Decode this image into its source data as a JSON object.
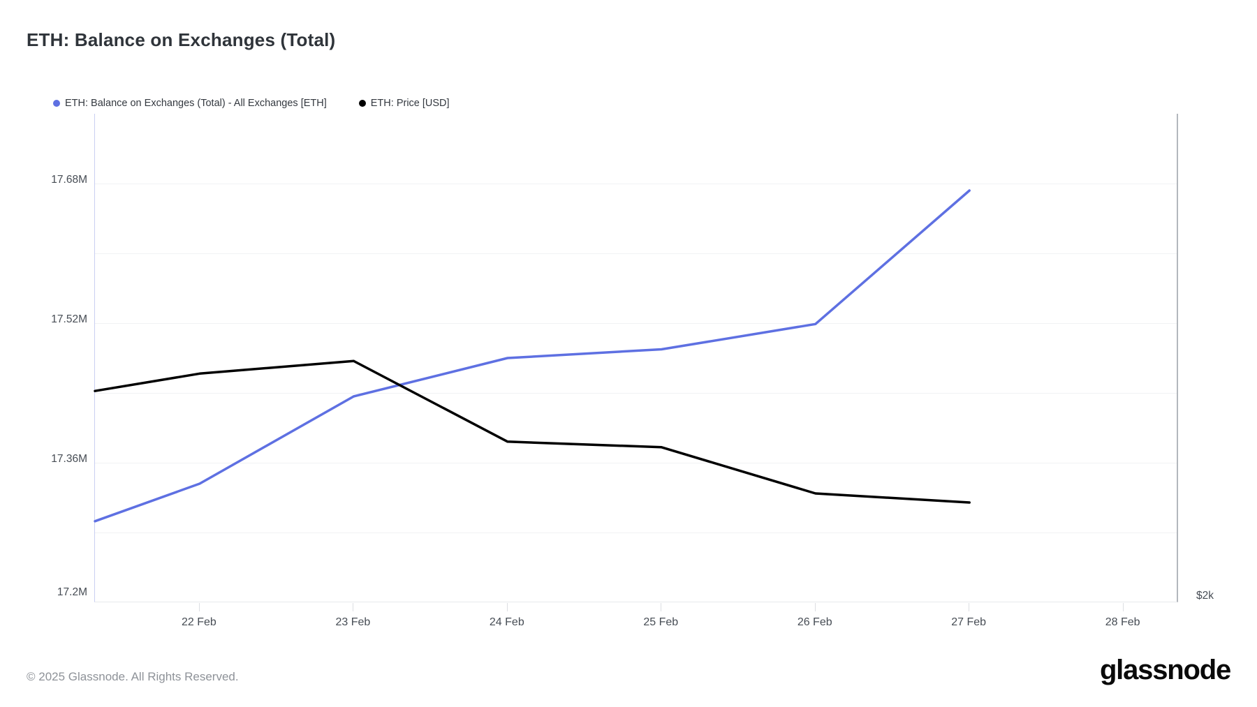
{
  "title": "ETH: Balance on Exchanges (Total)",
  "legend": {
    "items": [
      {
        "label": "ETH: Balance on Exchanges (Total) - All Exchanges [ETH]",
        "color": "#5e70e2"
      },
      {
        "label": "ETH: Price [USD]",
        "color": "#000000"
      }
    ]
  },
  "footer": {
    "copyright": "© 2025 Glassnode. All Rights Reserved.",
    "brand": "glassnode"
  },
  "chart_data": {
    "type": "line",
    "x_unit": "day of February 2025",
    "x": [
      21.32,
      22,
      23,
      24,
      25,
      26,
      27
    ],
    "series": [
      {
        "name": "ETH: Balance on Exchanges (Total) - All Exchanges [ETH]",
        "axis": "left",
        "color": "#5e70e2",
        "values": [
          17.293,
          17.336,
          17.436,
          17.48,
          17.49,
          17.519,
          17.672
        ]
      },
      {
        "name": "ETH: Price [USD]",
        "axis": "right",
        "color": "#000000",
        "values": [
          2718,
          2777,
          2820,
          2546,
          2527,
          2370,
          2339
        ]
      }
    ],
    "left_axis": {
      "lim": [
        17.2,
        17.76
      ],
      "unit": "M ETH",
      "gridline_values": [
        17.28,
        17.36,
        17.44,
        17.52,
        17.6,
        17.68
      ],
      "tick_labels": [
        {
          "value": 17.68,
          "label": "17.68M"
        },
        {
          "value": 17.52,
          "label": "17.52M"
        },
        {
          "value": 17.36,
          "label": "17.36M"
        },
        {
          "value": 17.2,
          "label": "17.2M"
        }
      ]
    },
    "right_axis": {
      "lim": [
        2000,
        3660
      ],
      "unit": "USD",
      "tick_labels": [
        {
          "value": 2000,
          "label": "$2k"
        }
      ]
    },
    "x_axis": {
      "lim": [
        21.32,
        28.36
      ],
      "ticks": [
        {
          "value": 22,
          "label": "22 Feb"
        },
        {
          "value": 23,
          "label": "23 Feb"
        },
        {
          "value": 24,
          "label": "24 Feb"
        },
        {
          "value": 25,
          "label": "25 Feb"
        },
        {
          "value": 26,
          "label": "26 Feb"
        },
        {
          "value": 27,
          "label": "27 Feb"
        },
        {
          "value": 28,
          "label": "28 Feb"
        }
      ]
    },
    "grid": "horizontal-only",
    "legend_position": "top-left",
    "title": "ETH: Balance on Exchanges (Total)"
  }
}
